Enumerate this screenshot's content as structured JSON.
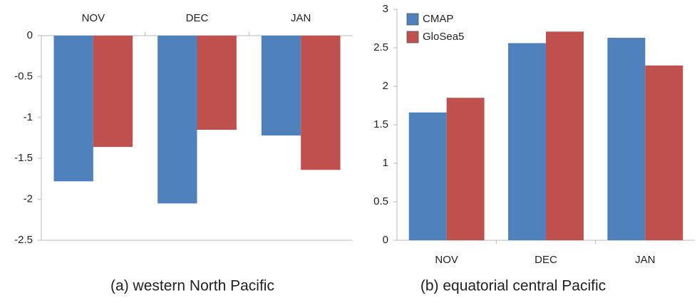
{
  "chart_data": [
    {
      "type": "bar",
      "title": "(a) western North Pacific",
      "categories": [
        "NOV",
        "DEC",
        "JAN"
      ],
      "series": [
        {
          "color": "#4f81bd",
          "values": [
            -1.78,
            -2.05,
            -1.22
          ]
        },
        {
          "color": "#c0504d",
          "values": [
            -1.36,
            -1.15,
            -1.64
          ]
        }
      ],
      "ylim": [
        -2.5,
        0
      ],
      "yticks": [
        0,
        -0.5,
        -1,
        -1.5,
        -2,
        -2.5
      ]
    },
    {
      "type": "bar",
      "title": "(b) equatorial central Pacific",
      "categories": [
        "NOV",
        "DEC",
        "JAN"
      ],
      "series": [
        {
          "name": "CMAP",
          "color": "#4f81bd",
          "values": [
            1.66,
            2.56,
            2.63
          ]
        },
        {
          "name": "GloSea5",
          "color": "#c0504d",
          "values": [
            1.85,
            2.71,
            2.27
          ]
        }
      ],
      "ylim": [
        0,
        3
      ],
      "yticks": [
        0,
        0.5,
        1,
        1.5,
        2,
        2.5,
        3
      ],
      "legend": "top-left"
    }
  ]
}
